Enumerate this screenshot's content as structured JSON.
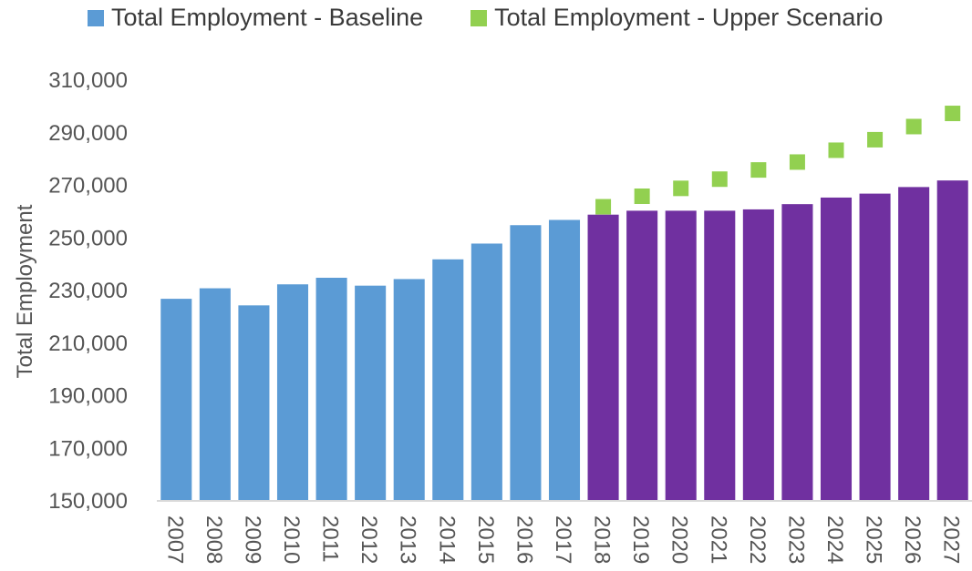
{
  "chart_data": {
    "type": "bar",
    "title": "",
    "xlabel": "",
    "ylabel": "Total Employment",
    "ylim": [
      150000,
      310000
    ],
    "yticks": [
      150000,
      170000,
      190000,
      210000,
      230000,
      250000,
      270000,
      290000,
      310000
    ],
    "ytick_labels": [
      "150,000",
      "170,000",
      "190,000",
      "210,000",
      "230,000",
      "250,000",
      "270,000",
      "290,000",
      "310,000"
    ],
    "grid": false,
    "legend_position": "top",
    "categories": [
      "2007",
      "2008",
      "2009",
      "2010",
      "2011",
      "2012",
      "2013",
      "2014",
      "2015",
      "2016",
      "2017",
      "2018",
      "2019",
      "2020",
      "2021",
      "2022",
      "2023",
      "2024",
      "2025",
      "2026",
      "2027"
    ],
    "series": [
      {
        "name": "Total Employment - Baseline",
        "type": "bar",
        "color": "#5b9bd5",
        "forecast_color": "#7030a0",
        "forecast_from": "2018",
        "values": [
          226500,
          230500,
          224000,
          232000,
          234500,
          231500,
          234000,
          241500,
          247500,
          254500,
          256500,
          258500,
          260000,
          260000,
          260000,
          260500,
          262500,
          265000,
          266500,
          269000,
          271500
        ]
      },
      {
        "name": "Total Employment - Upper Scenario",
        "type": "scatter",
        "marker": "square",
        "color": "#92d050",
        "x": [
          "2018",
          "2019",
          "2020",
          "2021",
          "2022",
          "2023",
          "2024",
          "2025",
          "2026",
          "2027"
        ],
        "values": [
          261500,
          265500,
          268500,
          272000,
          275500,
          278500,
          283000,
          287000,
          292000,
          297000
        ]
      }
    ]
  }
}
